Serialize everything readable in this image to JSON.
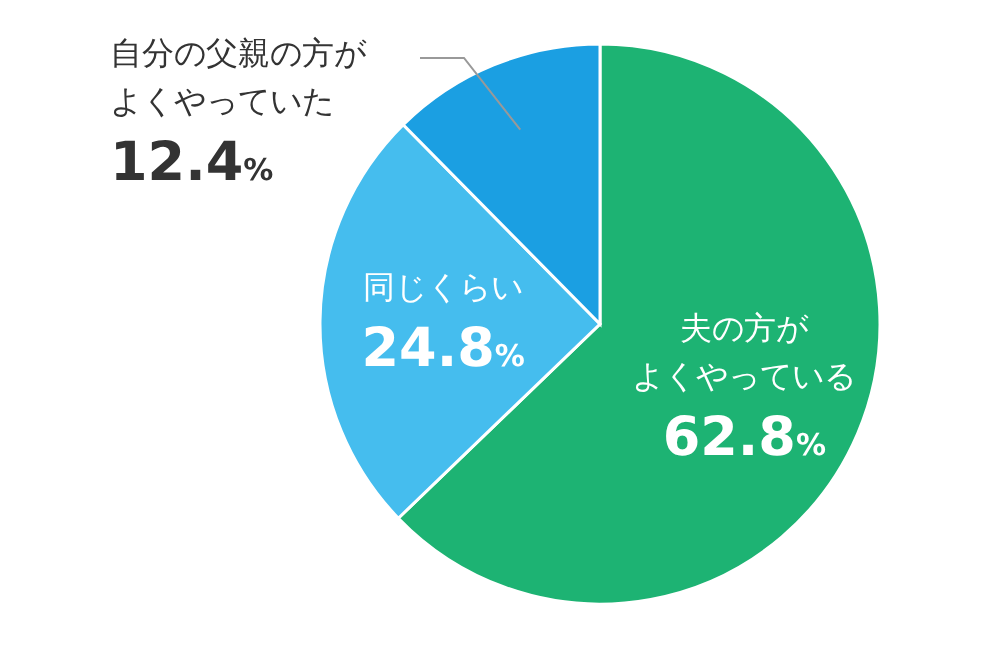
{
  "chart_data": {
    "type": "pie",
    "categories": [
      "夫の方がよくやっている",
      "同じくらい",
      "自分の父親の方がよくやっていた"
    ],
    "values": [
      62.8,
      24.8,
      12.4
    ],
    "colors": [
      "#1db373",
      "#45bdee",
      "#1b9fe2"
    ],
    "value_labels": [
      "62.8%",
      "24.8%",
      "12.4%"
    ]
  }
}
